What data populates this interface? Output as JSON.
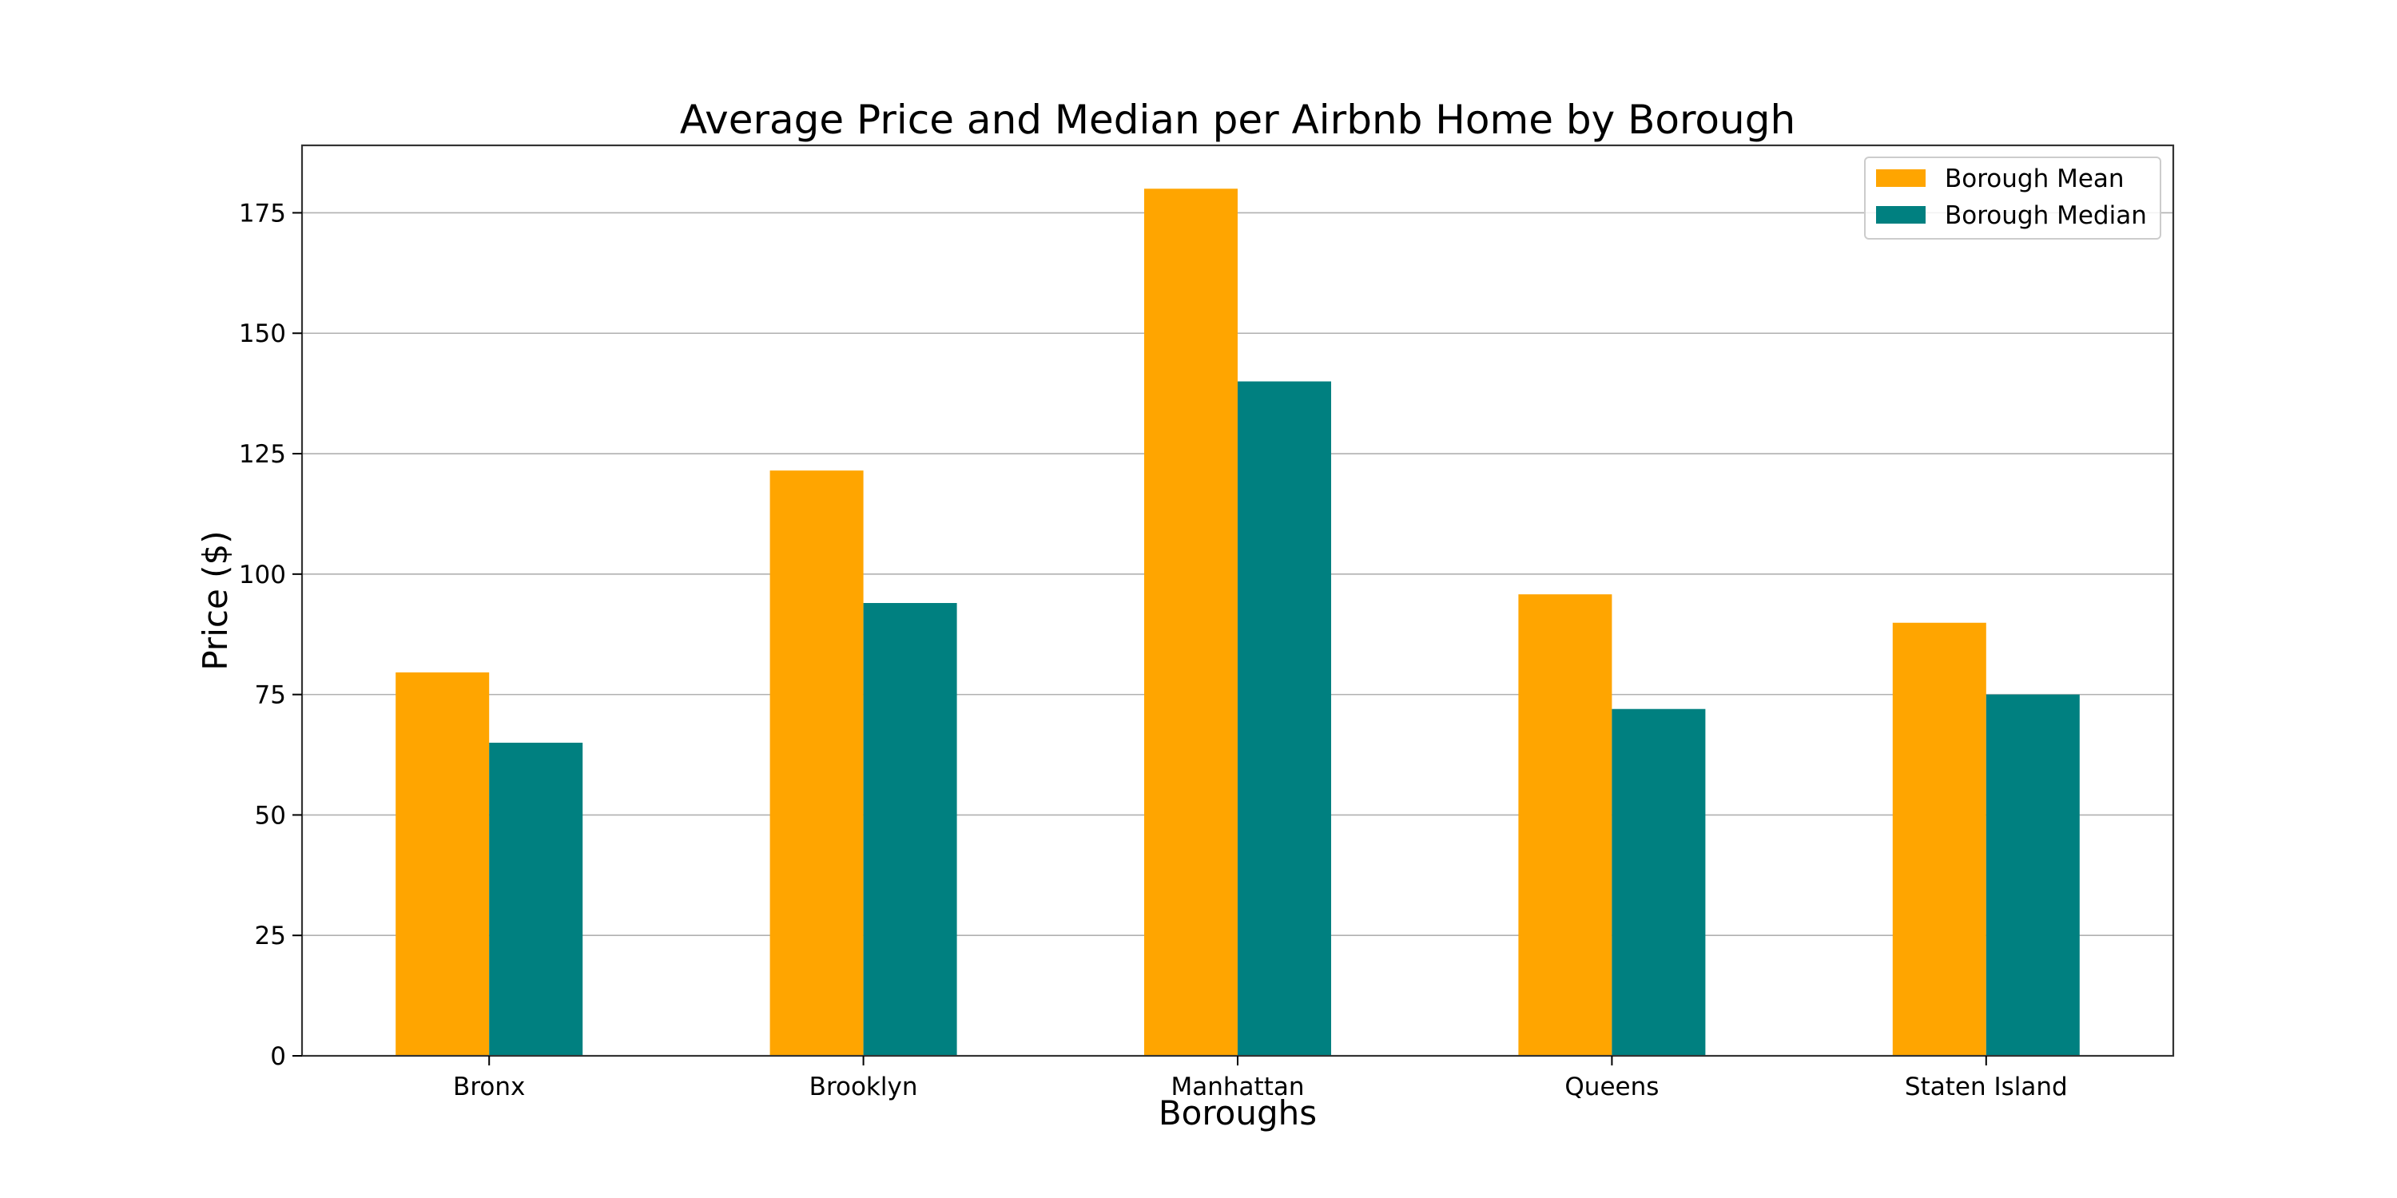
{
  "chart_data": {
    "type": "bar",
    "title": "Average Price and Median per Airbnb Home by Borough",
    "xlabel": "Boroughs",
    "ylabel": "Price ($)",
    "categories": [
      "Bronx",
      "Brooklyn",
      "Manhattan",
      "Queens",
      "Staten Island"
    ],
    "series": [
      {
        "name": "Borough Mean",
        "color": "#ffa500",
        "values": [
          79.6,
          121.5,
          180.0,
          95.8,
          89.9
        ]
      },
      {
        "name": "Borough Median",
        "color": "#008080",
        "values": [
          65,
          94,
          140,
          72,
          75
        ]
      }
    ],
    "ylim": [
      0,
      189
    ],
    "yticks": [
      0,
      25,
      50,
      75,
      100,
      125,
      150,
      175
    ],
    "grid": "horizontal",
    "legend_position": "top-right"
  }
}
